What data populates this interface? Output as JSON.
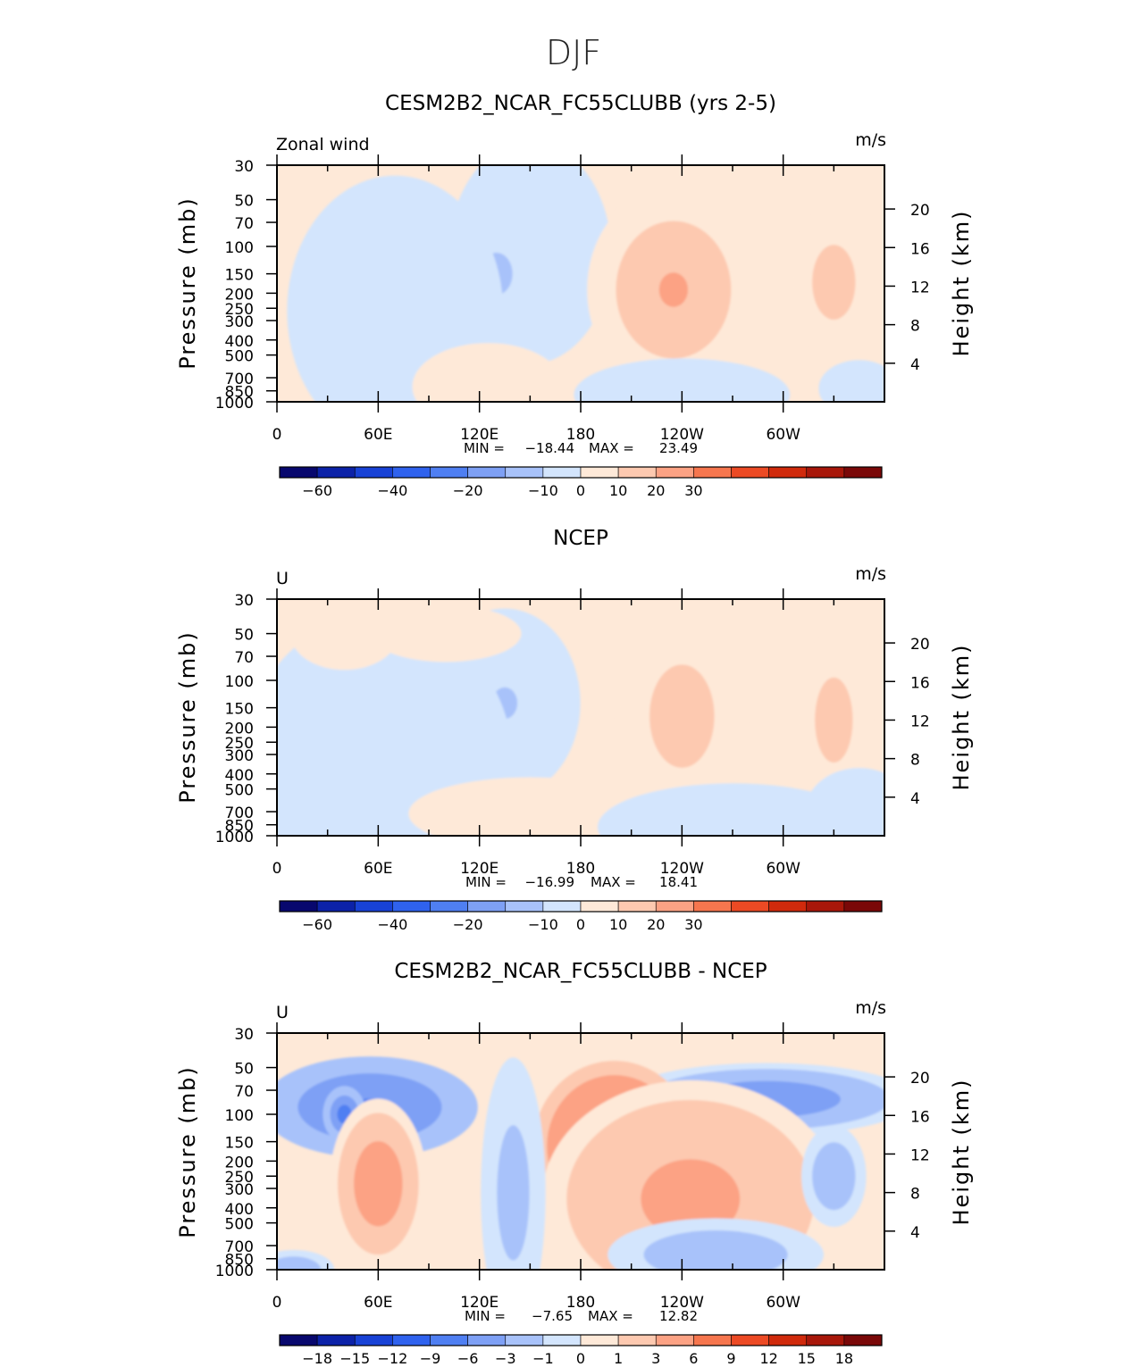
{
  "figure_title": "DJF",
  "chart_data": [
    {
      "type": "contour",
      "title": "CESM2B2_NCAR_FC55CLUBB (yrs 2-5)",
      "left_label": "Zonal wind",
      "units": "m/s",
      "ylabel": "Pressure (mb)",
      "ylabel_right": "Height (km)",
      "x_ticks": [
        "0",
        "60E",
        "120E",
        "180",
        "120W",
        "60W"
      ],
      "y_ticks": [
        "30",
        "50",
        "70",
        "100",
        "150",
        "200",
        "250",
        "300",
        "400",
        "500",
        "700",
        "850",
        "1000"
      ],
      "y_right_ticks": [
        "20",
        "16",
        "12",
        "8",
        "4"
      ],
      "stats": {
        "min_label": "MIN =",
        "min": "−18.44",
        "max_label": "MAX =",
        "max": "23.49"
      },
      "colorbar": {
        "ticks": [
          "−60",
          "−40",
          "−20",
          "−10",
          "0",
          "10",
          "20",
          "30"
        ]
      },
      "blobs": [
        {
          "lon": 150,
          "p": 110,
          "rx": 30,
          "rp": 2.8,
          "val": -7
        },
        {
          "lon": 130,
          "p": 150,
          "rx": 18,
          "rp": 1.8,
          "val": -14
        },
        {
          "lon": 70,
          "p": 260,
          "rx": 40,
          "rp": 3.5,
          "val": -5
        },
        {
          "lon": 235,
          "p": 190,
          "rx": 32,
          "rp": 2.6,
          "val": 23
        },
        {
          "lon": 330,
          "p": 170,
          "rx": 16,
          "rp": 2.0,
          "val": 16
        },
        {
          "lon": 125,
          "p": 800,
          "rx": 28,
          "rp": 1.5,
          "val": 8
        },
        {
          "lon": 240,
          "p": 900,
          "rx": 40,
          "rp": 1.4,
          "val": -7
        },
        {
          "lon": 345,
          "p": 820,
          "rx": 15,
          "rp": 1.3,
          "val": -6
        }
      ]
    },
    {
      "type": "contour",
      "title": "NCEP",
      "left_label": "U",
      "units": "m/s",
      "ylabel": "Pressure (mb)",
      "ylabel_right": "Height (km)",
      "x_ticks": [
        "0",
        "60E",
        "120E",
        "180",
        "120W",
        "60W"
      ],
      "y_ticks": [
        "30",
        "50",
        "70",
        "100",
        "150",
        "200",
        "250",
        "300",
        "400",
        "500",
        "700",
        "850",
        "1000"
      ],
      "y_right_ticks": [
        "20",
        "16",
        "12",
        "8",
        "4"
      ],
      "stats": {
        "min_label": "MIN =",
        "min": "−16.99",
        "max_label": "MAX =",
        "max": "18.41"
      },
      "colorbar": {
        "ticks": [
          "−60",
          "−40",
          "−20",
          "−10",
          "0",
          "10",
          "20",
          "30"
        ]
      },
      "blobs": [
        {
          "lon": 135,
          "p": 140,
          "rx": 28,
          "rp": 2.4,
          "val": -12
        },
        {
          "lon": 60,
          "p": 350,
          "rx": 50,
          "rp": 4.0,
          "val": -5
        },
        {
          "lon": 240,
          "p": 170,
          "rx": 24,
          "rp": 2.6,
          "val": 18
        },
        {
          "lon": 330,
          "p": 180,
          "rx": 14,
          "rp": 2.2,
          "val": 16
        },
        {
          "lon": 40,
          "p": 50,
          "rx": 20,
          "rp": 1.4,
          "val": 3
        },
        {
          "lon": 100,
          "p": 50,
          "rx": 28,
          "rp": 1.3,
          "val": 3
        },
        {
          "lon": 150,
          "p": 720,
          "rx": 45,
          "rp": 1.4,
          "val": 3
        },
        {
          "lon": 270,
          "p": 880,
          "rx": 50,
          "rp": 1.5,
          "val": -4
        },
        {
          "lon": 345,
          "p": 700,
          "rx": 20,
          "rp": 1.5,
          "val": -5
        }
      ]
    },
    {
      "type": "contour",
      "title": "CESM2B2_NCAR_FC55CLUBB - NCEP",
      "left_label": "U",
      "units": "m/s",
      "ylabel": "Pressure (mb)",
      "ylabel_right": "Height (km)",
      "x_ticks": [
        "0",
        "60E",
        "120E",
        "180",
        "120W",
        "60W"
      ],
      "y_ticks": [
        "30",
        "50",
        "70",
        "100",
        "150",
        "200",
        "250",
        "300",
        "400",
        "500",
        "700",
        "850",
        "1000"
      ],
      "y_right_ticks": [
        "20",
        "16",
        "12",
        "8",
        "4"
      ],
      "stats": {
        "min_label": "MIN =",
        "min": "−7.65",
        "max_label": "MAX =",
        "max": "12.82"
      },
      "colorbar": {
        "ticks": [
          "−18",
          "−15",
          "−12",
          "−9",
          "−6",
          "−3",
          "−1",
          "0",
          "1",
          "3",
          "6",
          "9",
          "12",
          "15",
          "18"
        ]
      },
      "blobs": [
        {
          "lon": 55,
          "p": 90,
          "rx": 40,
          "rp": 1.6,
          "val": -7
        },
        {
          "lon": 40,
          "p": 100,
          "rx": 8,
          "rp": 1.3,
          "val": -8
        },
        {
          "lon": 290,
          "p": 80,
          "rx": 55,
          "rp": 1.4,
          "val": -5
        },
        {
          "lon": 200,
          "p": 160,
          "rx": 30,
          "rp": 2.2,
          "val": 9
        },
        {
          "lon": 275,
          "p": 160,
          "rx": 20,
          "rp": 1.6,
          "val": 9
        },
        {
          "lon": 60,
          "p": 280,
          "rx": 18,
          "rp": 2.2,
          "val": 5
        },
        {
          "lon": 245,
          "p": 350,
          "rx": 55,
          "rp": 3.0,
          "val": 4
        },
        {
          "lon": 260,
          "p": 800,
          "rx": 40,
          "rp": 1.4,
          "val": -3
        },
        {
          "lon": 140,
          "p": 320,
          "rx": 12,
          "rp": 3.5,
          "val": -2
        },
        {
          "lon": 330,
          "p": 250,
          "rx": 12,
          "rp": 1.6,
          "val": -3
        },
        {
          "lon": 10,
          "p": 1000,
          "rx": 15,
          "rp": 1.2,
          "val": -3
        }
      ]
    }
  ]
}
